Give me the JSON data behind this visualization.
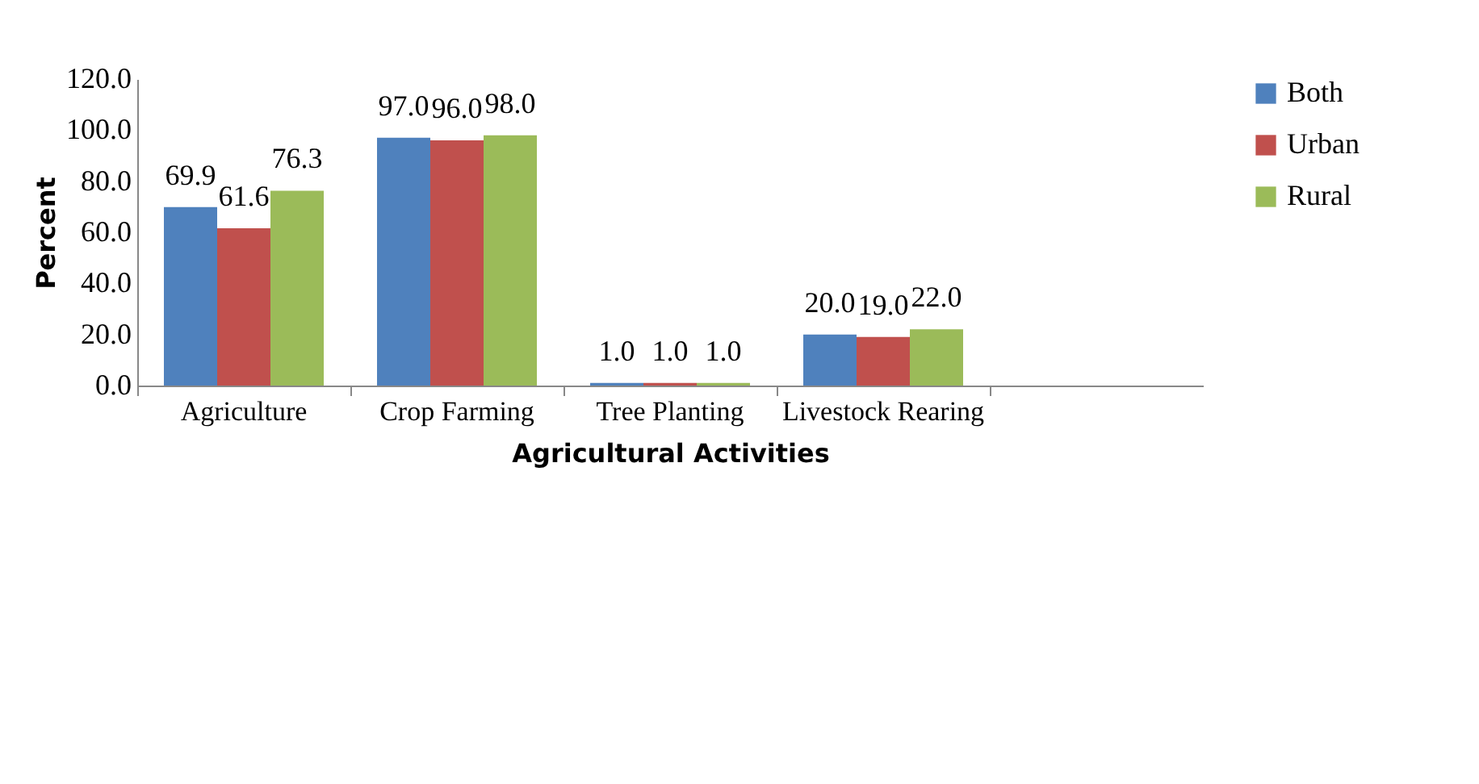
{
  "chart_data": {
    "type": "bar",
    "xlabel": "Agricultural Activities",
    "ylabel": "Percent",
    "categories": [
      "Agriculture",
      "Crop Farming",
      "Tree Planting",
      "Livestock Rearing",
      null
    ],
    "series": [
      {
        "name": "Both",
        "color": "#4f81bd",
        "values": [
          69.9,
          97.0,
          1.0,
          20.0,
          null
        ],
        "value_labels": [
          "69.9",
          "97.0",
          "1.0",
          "20.0",
          null
        ]
      },
      {
        "name": "Urban",
        "color": "#c0504d",
        "values": [
          61.6,
          96.0,
          1.0,
          19.0,
          null
        ],
        "value_labels": [
          "61.6",
          "96.0",
          "1.0",
          "19.0",
          null
        ]
      },
      {
        "name": "Rural",
        "color": "#9bbb59",
        "values": [
          76.3,
          98.0,
          1.0,
          22.0,
          null
        ],
        "value_labels": [
          "76.3",
          "98.0",
          "1.0",
          "22.0",
          null
        ]
      }
    ],
    "ylim": [
      0,
      120
    ],
    "yticks": [
      {
        "value": 0,
        "label": "0.0"
      },
      {
        "value": 20,
        "label": "20.0"
      },
      {
        "value": 40,
        "label": "40.0"
      },
      {
        "value": 60,
        "label": "60.0"
      },
      {
        "value": 80,
        "label": "80.0"
      },
      {
        "value": 100,
        "label": "100.0"
      },
      {
        "value": 120,
        "label": "120.0"
      }
    ],
    "legend": "right",
    "grid": false
  }
}
